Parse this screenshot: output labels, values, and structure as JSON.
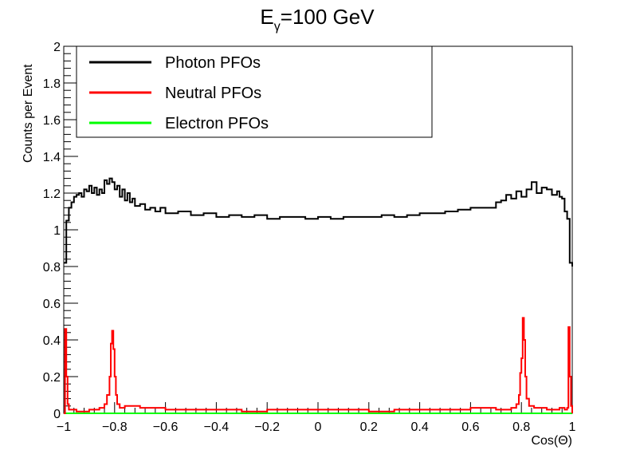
{
  "chart_data": {
    "type": "line",
    "title": {
      "base": "E",
      "sub": "γ",
      "rest": "=100 GeV"
    },
    "xlabel": "Cos(Θ)",
    "ylabel": "Counts per Event",
    "xlim": [
      -1,
      1
    ],
    "ylim": [
      0,
      2
    ],
    "x_ticks": [
      "−1",
      "−0.8",
      "−0.6",
      "−0.4",
      "−0.2",
      "0",
      "0.2",
      "0.4",
      "0.6",
      "0.8",
      "1"
    ],
    "y_ticks": [
      "0",
      "0.2",
      "0.4",
      "0.6",
      "0.8",
      "1",
      "1.2",
      "1.4",
      "1.6",
      "1.8",
      "2"
    ],
    "grid": false,
    "legend_position": "top-left",
    "series": [
      {
        "name": "Photon PFOs",
        "color": "#000000",
        "x": [
          -1.0,
          -0.99,
          -0.98,
          -0.97,
          -0.96,
          -0.95,
          -0.94,
          -0.93,
          -0.92,
          -0.91,
          -0.9,
          -0.89,
          -0.88,
          -0.87,
          -0.86,
          -0.85,
          -0.84,
          -0.83,
          -0.82,
          -0.81,
          -0.8,
          -0.79,
          -0.78,
          -0.77,
          -0.76,
          -0.75,
          -0.74,
          -0.73,
          -0.72,
          -0.7,
          -0.68,
          -0.66,
          -0.64,
          -0.62,
          -0.6,
          -0.55,
          -0.5,
          -0.45,
          -0.4,
          -0.35,
          -0.3,
          -0.25,
          -0.2,
          -0.15,
          -0.1,
          -0.05,
          0.0,
          0.05,
          0.1,
          0.15,
          0.2,
          0.25,
          0.3,
          0.35,
          0.4,
          0.45,
          0.5,
          0.55,
          0.6,
          0.65,
          0.7,
          0.72,
          0.74,
          0.76,
          0.78,
          0.8,
          0.82,
          0.84,
          0.86,
          0.88,
          0.9,
          0.92,
          0.94,
          0.95,
          0.96,
          0.97,
          0.98,
          0.99,
          1.0
        ],
        "y": [
          0.82,
          1.05,
          1.12,
          1.15,
          1.18,
          1.19,
          1.2,
          1.18,
          1.22,
          1.21,
          1.24,
          1.2,
          1.23,
          1.19,
          1.22,
          1.2,
          1.27,
          1.25,
          1.28,
          1.26,
          1.22,
          1.24,
          1.18,
          1.22,
          1.16,
          1.2,
          1.15,
          1.17,
          1.13,
          1.14,
          1.11,
          1.12,
          1.1,
          1.12,
          1.09,
          1.1,
          1.08,
          1.09,
          1.07,
          1.08,
          1.07,
          1.08,
          1.06,
          1.07,
          1.07,
          1.06,
          1.07,
          1.06,
          1.07,
          1.07,
          1.07,
          1.08,
          1.07,
          1.08,
          1.09,
          1.09,
          1.1,
          1.11,
          1.12,
          1.12,
          1.15,
          1.16,
          1.19,
          1.17,
          1.21,
          1.18,
          1.22,
          1.26,
          1.2,
          1.23,
          1.22,
          1.19,
          1.21,
          1.18,
          1.17,
          1.1,
          1.06,
          0.82,
          0.8
        ]
      },
      {
        "name": "Neutral PFOs",
        "color": "#ff0000",
        "x": [
          -1.0,
          -0.995,
          -0.99,
          -0.985,
          -0.98,
          -0.97,
          -0.95,
          -0.9,
          -0.86,
          -0.84,
          -0.83,
          -0.82,
          -0.815,
          -0.81,
          -0.805,
          -0.8,
          -0.795,
          -0.79,
          -0.78,
          -0.76,
          -0.7,
          -0.6,
          -0.5,
          -0.4,
          -0.3,
          -0.2,
          -0.1,
          0.0,
          0.1,
          0.2,
          0.3,
          0.4,
          0.5,
          0.6,
          0.7,
          0.76,
          0.78,
          0.79,
          0.795,
          0.8,
          0.805,
          0.81,
          0.815,
          0.82,
          0.83,
          0.85,
          0.9,
          0.95,
          0.97,
          0.98,
          0.985,
          0.99,
          0.995,
          1.0
        ],
        "y": [
          0.0,
          0.46,
          0.2,
          0.05,
          0.02,
          0.02,
          0.01,
          0.02,
          0.03,
          0.05,
          0.1,
          0.2,
          0.38,
          0.45,
          0.35,
          0.2,
          0.1,
          0.05,
          0.03,
          0.04,
          0.03,
          0.02,
          0.02,
          0.02,
          0.01,
          0.02,
          0.02,
          0.02,
          0.02,
          0.01,
          0.02,
          0.02,
          0.02,
          0.03,
          0.02,
          0.03,
          0.05,
          0.1,
          0.22,
          0.3,
          0.52,
          0.4,
          0.2,
          0.08,
          0.04,
          0.03,
          0.02,
          0.03,
          0.02,
          0.03,
          0.47,
          0.2,
          0.04,
          0.0
        ]
      },
      {
        "name": "Electron PFOs",
        "color": "#00ff00",
        "x": [
          -1.0,
          1.0
        ],
        "y": [
          0.0,
          0.0
        ]
      }
    ]
  }
}
